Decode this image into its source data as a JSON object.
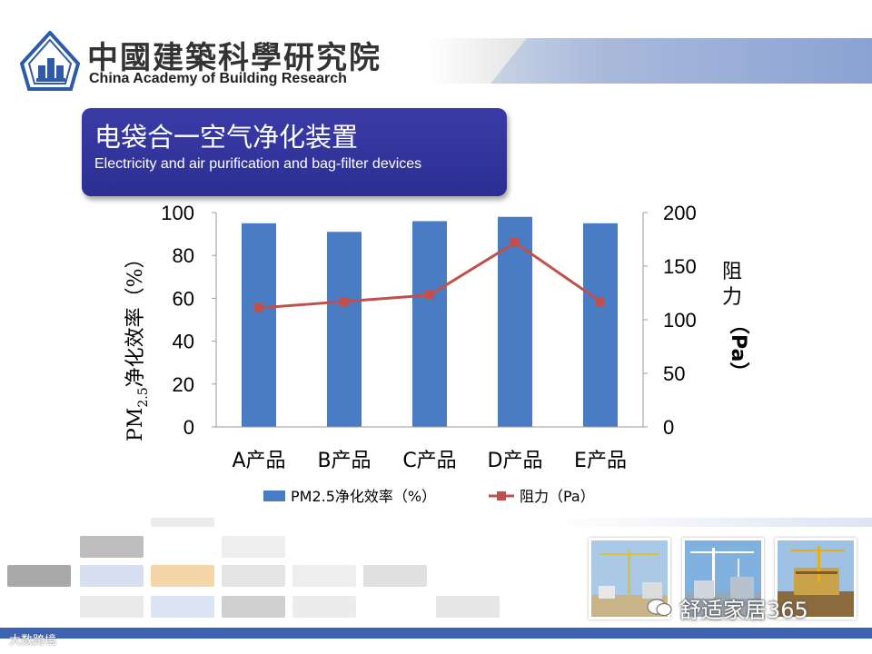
{
  "header": {
    "org_name_cn": "中國建築科學研究院",
    "org_name_en": "China Academy of Building Research"
  },
  "slide": {
    "title_cn": "电袋合一空气净化装置",
    "title_en": "Electricity and air purification  and bag-filter devices"
  },
  "chart_data": {
    "type": "bar",
    "categories": [
      "A产品",
      "B产品",
      "C产品",
      "D产品",
      "E产品"
    ],
    "series": [
      {
        "name": "PM2.5净化效率（%）",
        "type": "bar",
        "axis": "left",
        "values": [
          95,
          91,
          96,
          98,
          95
        ],
        "color": "#4a7cc4"
      },
      {
        "name": "阻力（Pa）",
        "type": "line",
        "axis": "right",
        "values": [
          111,
          117,
          123,
          172,
          117
        ],
        "color": "#c0504d"
      }
    ],
    "ylabel_left_parts": {
      "main": "PM",
      "subscript": "2.5",
      "rest": "净化效率（%）"
    },
    "ylabel_right": "阻力（Pa）",
    "ylim_left": [
      0,
      100
    ],
    "yticks_left": [
      "0",
      "20",
      "40",
      "60",
      "80",
      "100"
    ],
    "ylim_right": [
      0,
      200
    ],
    "yticks_right": [
      "0",
      "50",
      "100",
      "150",
      "200"
    ],
    "legend": "bottom",
    "grid": false
  },
  "footer": {
    "watermark": "舒适家居365",
    "corner_mark": "大数跨境"
  },
  "colors": {
    "bar": "#4a7cc4",
    "line": "#c0504d",
    "title_bg": "#2e3196",
    "footer_bar": "#3e63b4"
  }
}
